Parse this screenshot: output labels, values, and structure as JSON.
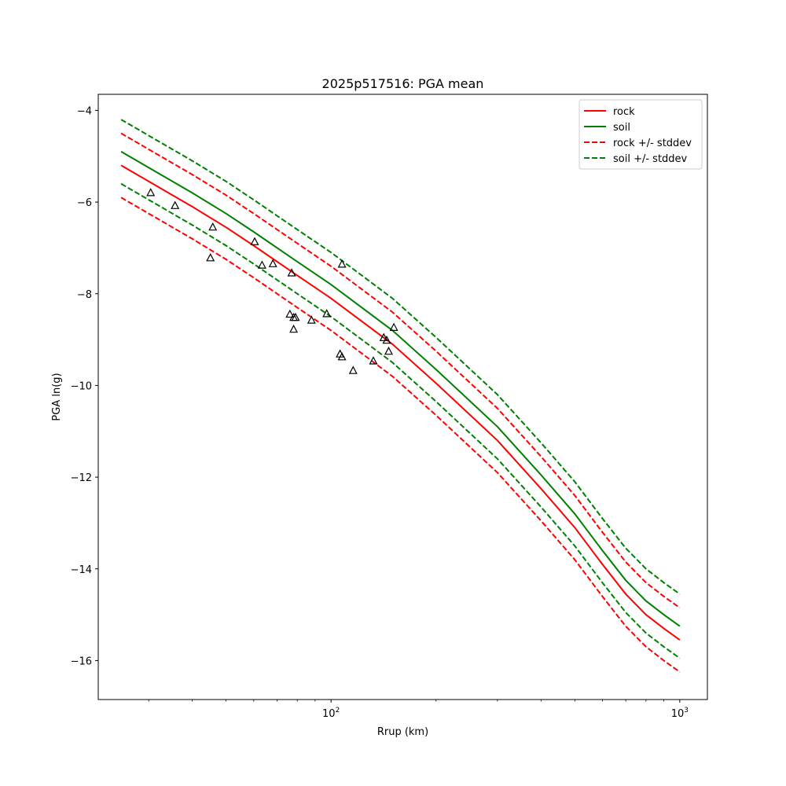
{
  "chart_data": {
    "type": "line",
    "title": "2025p517516: PGA mean",
    "xlabel": "Rrup (km)",
    "ylabel": "PGA ln(g)",
    "xscale": "log",
    "xlim": [
      21.5,
      1200
    ],
    "ylim": [
      -16.85,
      -3.65
    ],
    "x_ticks": [
      {
        "value": 100,
        "base": "10",
        "exp": "2"
      },
      {
        "value": 1000,
        "base": "10",
        "exp": "3"
      }
    ],
    "y_ticks": [
      -4,
      -6,
      -8,
      -10,
      -12,
      -14,
      -16
    ],
    "grid": false,
    "legend_position": "top-right",
    "x": [
      25,
      30,
      40,
      50,
      60,
      80,
      100,
      150,
      200,
      300,
      400,
      500,
      600,
      700,
      800,
      900,
      1000
    ],
    "series": [
      {
        "name": "rock",
        "style": "solid",
        "color": "#ff0000",
        "show_in_legend": true,
        "values": [
          -5.2,
          -5.55,
          -6.1,
          -6.55,
          -6.95,
          -7.6,
          -8.1,
          -9.1,
          -9.95,
          -11.2,
          -12.25,
          -13.1,
          -13.9,
          -14.55,
          -15.0,
          -15.3,
          -15.55
        ]
      },
      {
        "name": "soil",
        "style": "solid",
        "color": "#008000",
        "show_in_legend": true,
        "values": [
          -4.9,
          -5.25,
          -5.8,
          -6.25,
          -6.65,
          -7.3,
          -7.8,
          -8.8,
          -9.65,
          -10.9,
          -11.95,
          -12.8,
          -13.6,
          -14.25,
          -14.7,
          -15.0,
          -15.25
        ]
      },
      {
        "name": "rock +/- stddev",
        "style": "dashed",
        "color": "#ff0000",
        "show_in_legend": true,
        "values": [
          -4.5,
          -4.85,
          -5.4,
          -5.85,
          -6.25,
          -6.9,
          -7.4,
          -8.4,
          -9.25,
          -10.5,
          -11.55,
          -12.4,
          -13.2,
          -13.85,
          -14.3,
          -14.6,
          -14.85
        ]
      },
      {
        "name": "",
        "style": "dashed",
        "color": "#ff0000",
        "show_in_legend": false,
        "values": [
          -5.9,
          -6.25,
          -6.8,
          -7.25,
          -7.65,
          -8.3,
          -8.8,
          -9.8,
          -10.65,
          -11.9,
          -12.95,
          -13.8,
          -14.6,
          -15.25,
          -15.7,
          -16.0,
          -16.25
        ]
      },
      {
        "name": "soil +/- stddev",
        "style": "dashed",
        "color": "#008000",
        "show_in_legend": true,
        "values": [
          -4.2,
          -4.55,
          -5.1,
          -5.55,
          -5.95,
          -6.6,
          -7.1,
          -8.1,
          -8.95,
          -10.2,
          -11.25,
          -12.1,
          -12.9,
          -13.55,
          -14.0,
          -14.3,
          -14.55
        ]
      },
      {
        "name": "",
        "style": "dashed",
        "color": "#008000",
        "show_in_legend": false,
        "values": [
          -5.6,
          -5.95,
          -6.5,
          -6.95,
          -7.35,
          -8.0,
          -8.5,
          -9.5,
          -10.35,
          -11.6,
          -12.65,
          -13.5,
          -14.3,
          -14.95,
          -15.4,
          -15.7,
          -15.95
        ]
      }
    ],
    "observations": [
      {
        "x": 30.4,
        "y": -5.8
      },
      {
        "x": 35.7,
        "y": -6.08
      },
      {
        "x": 45.8,
        "y": -6.55
      },
      {
        "x": 45.1,
        "y": -7.22
      },
      {
        "x": 60.4,
        "y": -6.87
      },
      {
        "x": 63.4,
        "y": -7.38
      },
      {
        "x": 68.1,
        "y": -7.35
      },
      {
        "x": 77.1,
        "y": -7.55
      },
      {
        "x": 76.2,
        "y": -8.45
      },
      {
        "x": 78.1,
        "y": -8.52
      },
      {
        "x": 78.1,
        "y": -8.78
      },
      {
        "x": 79.1,
        "y": -8.52
      },
      {
        "x": 87.9,
        "y": -8.58
      },
      {
        "x": 97.2,
        "y": -8.44
      },
      {
        "x": 106.1,
        "y": -9.32
      },
      {
        "x": 107.5,
        "y": -9.38
      },
      {
        "x": 107.5,
        "y": -7.36
      },
      {
        "x": 115.7,
        "y": -9.68
      },
      {
        "x": 132.2,
        "y": -9.47
      },
      {
        "x": 141.6,
        "y": -8.96
      },
      {
        "x": 144.4,
        "y": -9.02
      },
      {
        "x": 146.3,
        "y": -9.26
      },
      {
        "x": 151.4,
        "y": -8.74
      }
    ]
  }
}
